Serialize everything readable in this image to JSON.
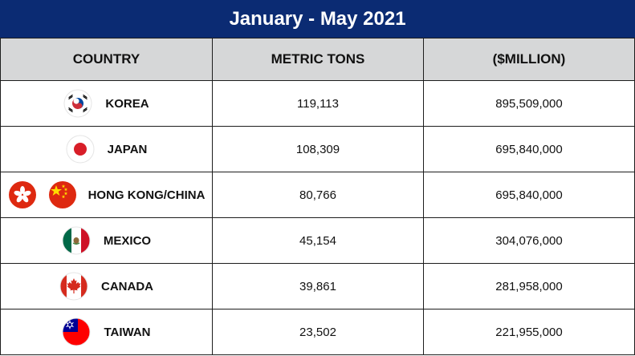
{
  "title": "January - May 2021",
  "headers": {
    "country": "COUNTRY",
    "metric_tons": "METRIC TONS",
    "million": "($MILLION)"
  },
  "colors": {
    "title_bar": "#0b2b73",
    "header_bg": "#d6d7d8"
  },
  "rows": [
    {
      "country": "KOREA",
      "metric_tons": "119,113",
      "value": "895,509,000",
      "flags": [
        "korea-flag-icon"
      ]
    },
    {
      "country": "JAPAN",
      "metric_tons": "108,309",
      "value": "695,840,000",
      "flags": [
        "japan-flag-icon"
      ]
    },
    {
      "country": "HONG KONG/CHINA",
      "metric_tons": "80,766",
      "value": "695,840,000",
      "flags": [
        "hong-kong-flag-icon",
        "china-flag-icon"
      ]
    },
    {
      "country": "MEXICO",
      "metric_tons": "45,154",
      "value": "304,076,000",
      "flags": [
        "mexico-flag-icon"
      ]
    },
    {
      "country": "CANADA",
      "metric_tons": "39,861",
      "value": "281,958,000",
      "flags": [
        "canada-flag-icon"
      ]
    },
    {
      "country": "TAIWAN",
      "metric_tons": "23,502",
      "value": "221,955,000",
      "flags": [
        "taiwan-flag-icon"
      ]
    }
  ],
  "chart_data": {
    "type": "table",
    "title": "January - May 2021",
    "columns": [
      "COUNTRY",
      "METRIC TONS",
      "($MILLION)"
    ],
    "rows": [
      [
        "KOREA",
        119113,
        895509000
      ],
      [
        "JAPAN",
        108309,
        695840000
      ],
      [
        "HONG KONG/CHINA",
        80766,
        695840000
      ],
      [
        "MEXICO",
        45154,
        304076000
      ],
      [
        "CANADA",
        39861,
        281958000
      ],
      [
        "TAIWAN",
        23502,
        221955000
      ]
    ]
  }
}
